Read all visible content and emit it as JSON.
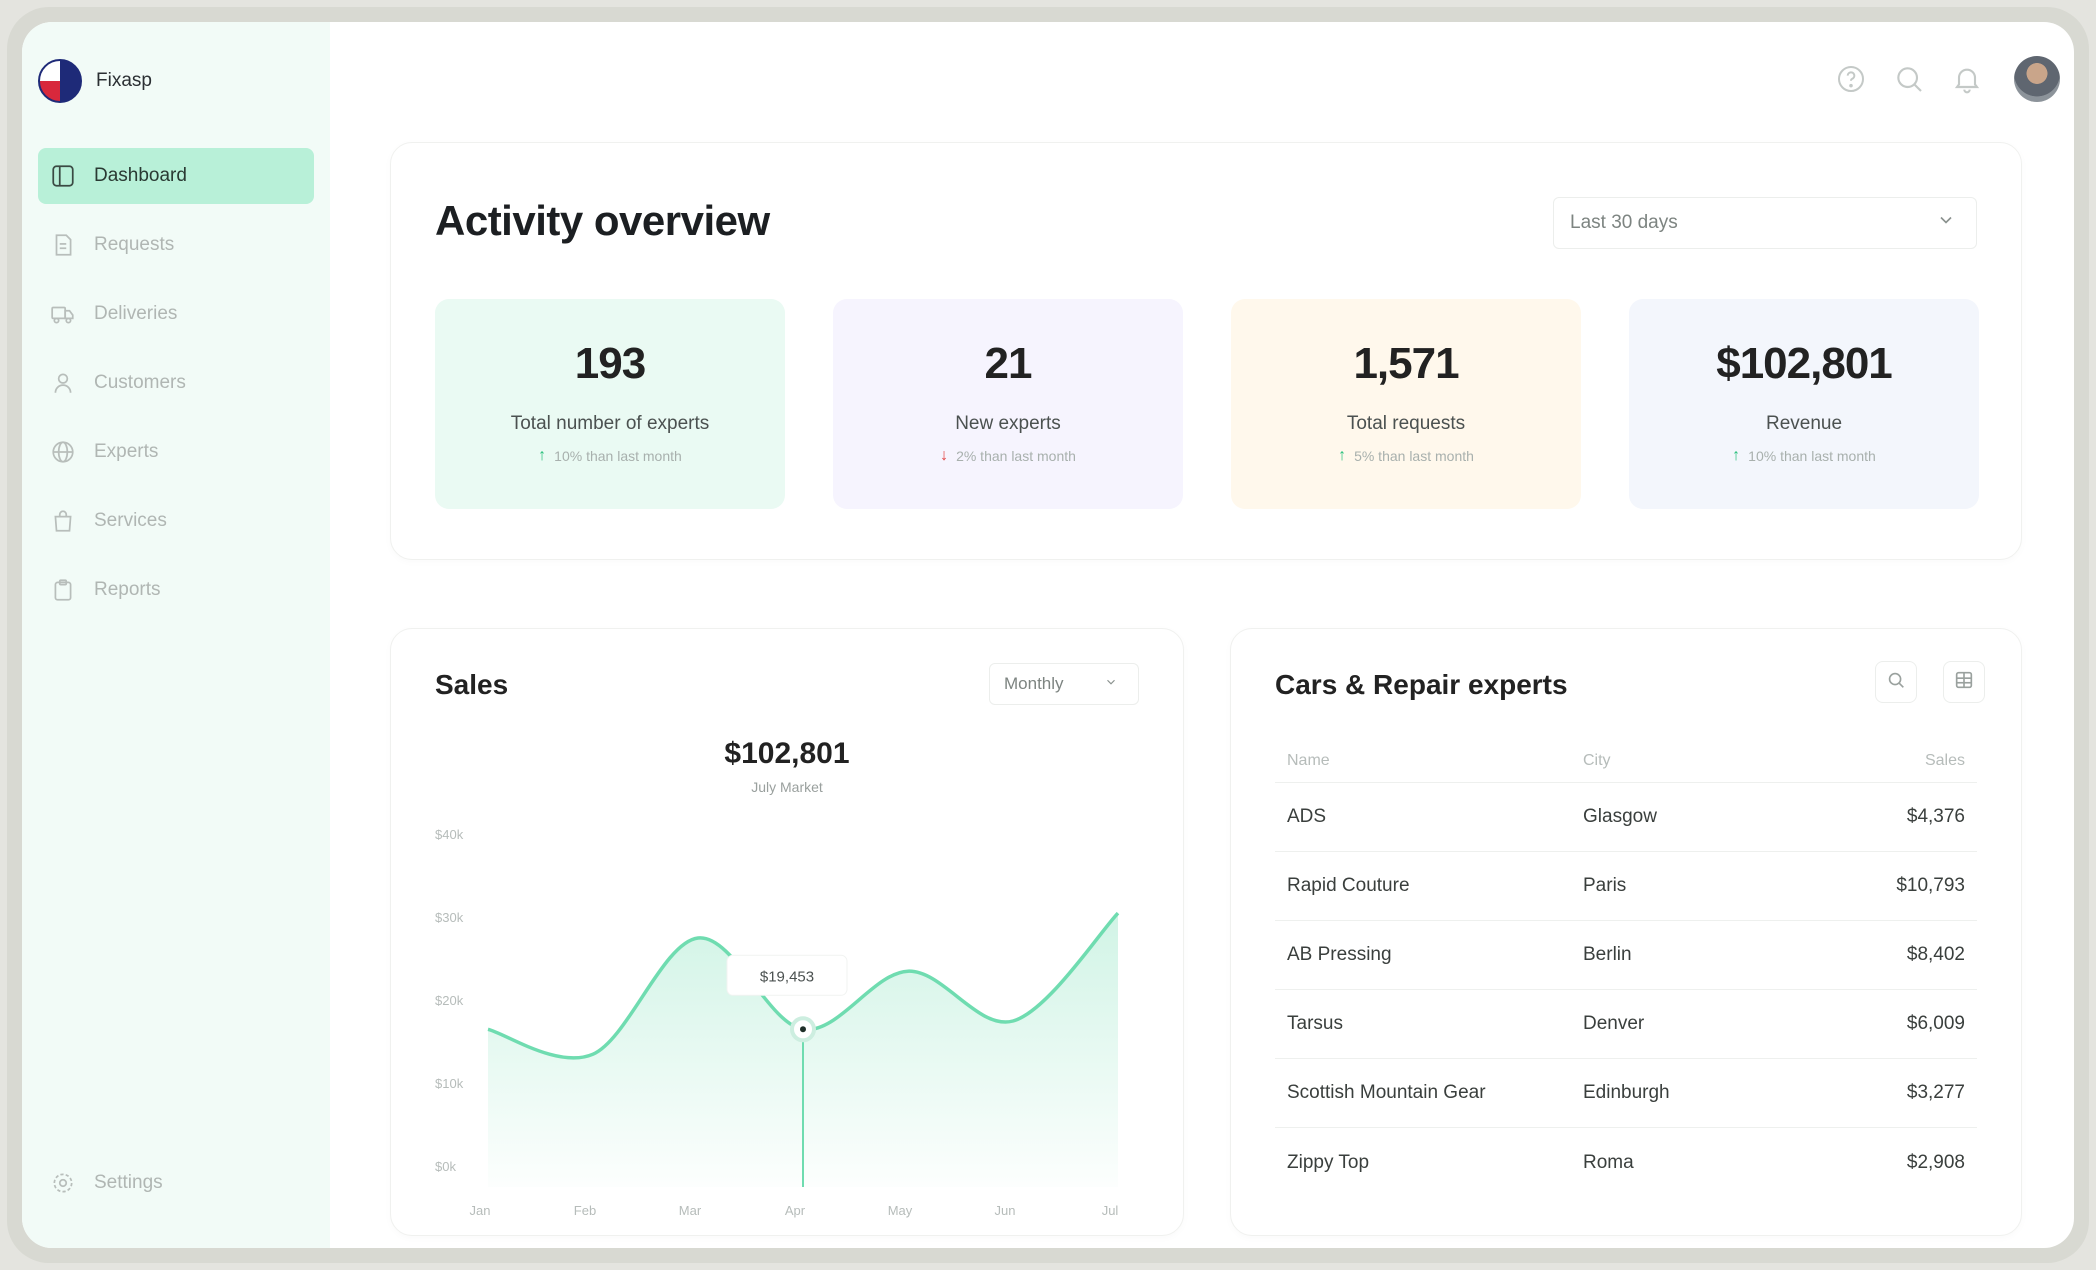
{
  "brand": {
    "name": "Fixasp"
  },
  "sidebar": {
    "items": [
      {
        "label": "Dashboard",
        "icon": "dashboard-icon",
        "active": true
      },
      {
        "label": "Requests",
        "icon": "document-icon",
        "active": false
      },
      {
        "label": "Deliveries",
        "icon": "truck-icon",
        "active": false
      },
      {
        "label": "Customers",
        "icon": "person-icon",
        "active": false
      },
      {
        "label": "Experts",
        "icon": "globe-icon",
        "active": false
      },
      {
        "label": "Services",
        "icon": "bag-icon",
        "active": false
      },
      {
        "label": "Reports",
        "icon": "clipboard-icon",
        "active": false
      }
    ],
    "settings_label": "Settings"
  },
  "topbar": {
    "icons": [
      "help-icon",
      "search-icon",
      "bell-icon",
      "avatar"
    ]
  },
  "activity": {
    "title": "Activity overview",
    "range": "Last 30 days",
    "stats": [
      {
        "value": "193",
        "label": "Total number of experts",
        "trend": "10% than last month",
        "direction": "up",
        "bg": "#eafaf3"
      },
      {
        "value": "21",
        "label": "New experts",
        "trend": "2% than last month",
        "direction": "down",
        "bg": "#f6f4fe"
      },
      {
        "value": "1,571",
        "label": "Total requests",
        "trend": "5% than last month",
        "direction": "up",
        "bg": "#fff8ec"
      },
      {
        "value": "$102,801",
        "label": "Revenue",
        "trend": "10% than last month",
        "direction": "up",
        "bg": "#f3f6fc"
      }
    ]
  },
  "sales": {
    "title": "Sales",
    "period": "Monthly",
    "total": "$102,801",
    "total_sub": "July Market",
    "tooltip": "$19,453"
  },
  "chart_data": {
    "type": "area",
    "title": "Sales",
    "categories": [
      "Jan",
      "Feb",
      "Mar",
      "Apr",
      "May",
      "Jun",
      "Jul"
    ],
    "y_tick_labels": [
      "$40k",
      "$30k",
      "$20k",
      "$10k",
      "$0k"
    ],
    "ylim": [
      0,
      40
    ],
    "values": [
      19,
      16,
      30,
      19,
      26,
      20,
      33
    ],
    "highlight": {
      "category": "Apr",
      "label": "$19,453"
    },
    "color": "#6fdcb0",
    "grid": false,
    "legend": "none"
  },
  "experts": {
    "title": "Cars & Repair experts",
    "columns": [
      "Name",
      "City",
      "Sales"
    ],
    "rows": [
      {
        "name": "ADS",
        "city": "Glasgow",
        "sales": "$4,376"
      },
      {
        "name": "Rapid Couture",
        "city": "Paris",
        "sales": "$10,793"
      },
      {
        "name": "AB Pressing",
        "city": "Berlin",
        "sales": "$8,402"
      },
      {
        "name": "Tarsus",
        "city": "Denver",
        "sales": "$6,009"
      },
      {
        "name": "Scottish Mountain Gear",
        "city": "Edinburgh",
        "sales": "$3,277"
      },
      {
        "name": "Zippy Top",
        "city": "Roma",
        "sales": "$2,908"
      }
    ]
  }
}
